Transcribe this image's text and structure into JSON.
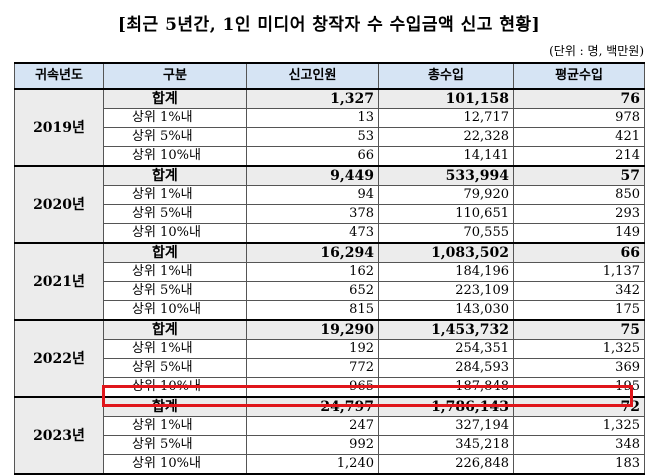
{
  "title": "[최근 5년간, 1인 미디어 창작자 수 수입금액 신고 현황]",
  "unit": "(단위 : 명, 백만원)",
  "headers": [
    "귀속년도",
    "구분",
    "신고인원",
    "총수입",
    "평균수입"
  ],
  "groups": [
    {
      "year": "2019년",
      "rows": [
        {
          "cat": "합계",
          "a": "1,327",
          "b": "101,158",
          "c": "76"
        },
        {
          "cat": "상위 1%내",
          "a": "13",
          "b": "12,717",
          "c": "978"
        },
        {
          "cat": "상위 5%내",
          "a": "53",
          "b": "22,328",
          "c": "421"
        },
        {
          "cat": "상위 10%내",
          "a": "66",
          "b": "14,141",
          "c": "214"
        }
      ]
    },
    {
      "year": "2020년",
      "rows": [
        {
          "cat": "합계",
          "a": "9,449",
          "b": "533,994",
          "c": "57"
        },
        {
          "cat": "상위 1%내",
          "a": "94",
          "b": "79,920",
          "c": "850"
        },
        {
          "cat": "상위 5%내",
          "a": "378",
          "b": "110,651",
          "c": "293"
        },
        {
          "cat": "상위 10%내",
          "a": "473",
          "b": "70,555",
          "c": "149"
        }
      ]
    },
    {
      "year": "2021년",
      "rows": [
        {
          "cat": "합계",
          "a": "16,294",
          "b": "1,083,502",
          "c": "66"
        },
        {
          "cat": "상위 1%내",
          "a": "162",
          "b": "184,196",
          "c": "1,137"
        },
        {
          "cat": "상위 5%내",
          "a": "652",
          "b": "223,109",
          "c": "342"
        },
        {
          "cat": "상위 10%내",
          "a": "815",
          "b": "143,030",
          "c": "175"
        }
      ]
    },
    {
      "year": "2022년",
      "rows": [
        {
          "cat": "합계",
          "a": "19,290",
          "b": "1,453,732",
          "c": "75"
        },
        {
          "cat": "상위 1%내",
          "a": "192",
          "b": "254,351",
          "c": "1,325"
        },
        {
          "cat": "상위 5%내",
          "a": "772",
          "b": "284,593",
          "c": "369"
        },
        {
          "cat": "상위 10%내",
          "a": "965",
          "b": "187,848",
          "c": "195"
        }
      ]
    },
    {
      "year": "2023년",
      "rows": [
        {
          "cat": "합계",
          "a": "24,797",
          "b": "1,786,143",
          "c": "72"
        },
        {
          "cat": "상위 1%내",
          "a": "247",
          "b": "327,194",
          "c": "1,325"
        },
        {
          "cat": "상위 5%내",
          "a": "992",
          "b": "345,218",
          "c": "348"
        },
        {
          "cat": "상위 10%내",
          "a": "1,240",
          "b": "226,848",
          "c": "183"
        }
      ]
    }
  ],
  "highlight_color": "#e0161b"
}
